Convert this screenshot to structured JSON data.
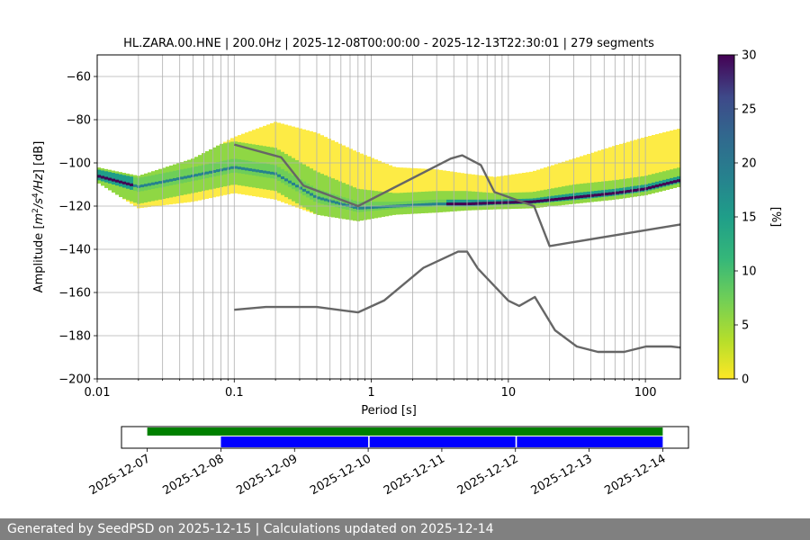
{
  "chart_data": {
    "type": "heatmap",
    "title": "HL.ZARA.00.HNE | 200.0Hz | 2025-12-08T00:00:00 - 2025-12-13T22:30:01 | 279 segments",
    "xlabel": "Period [s]",
    "ylabel_parts": [
      "Amplitude [",
      "m",
      "2",
      "/s",
      "4",
      "/Hz",
      "] [dB]"
    ],
    "x_scale": "log",
    "xlim": [
      0.01,
      180
    ],
    "ylim": [
      -200,
      -50
    ],
    "x_ticks": [
      0.01,
      0.1,
      1,
      10,
      100
    ],
    "x_tick_labels": [
      "0.01",
      "0.1",
      "1",
      "10",
      "100"
    ],
    "y_ticks": [
      -200,
      -180,
      -160,
      -140,
      -120,
      -100,
      -80,
      -60
    ],
    "y_tick_labels": [
      "−200",
      "−180",
      "−160",
      "−140",
      "−120",
      "−100",
      "−80",
      "−60"
    ],
    "grid": true,
    "colorbar": {
      "label": "[%]",
      "range": [
        0,
        30
      ],
      "ticks": [
        0,
        5,
        10,
        15,
        20,
        25,
        30
      ],
      "tick_labels": [
        "0",
        "5",
        "10",
        "15",
        "20",
        "25",
        "30"
      ]
    },
    "nlnm": {
      "name": "",
      "x": [
        0.1,
        0.17,
        0.4,
        0.8,
        1.24,
        2.4,
        4.3,
        5.0,
        6.0,
        10.0,
        12.0,
        15.6,
        21.9,
        31.6,
        45.0,
        70.0,
        101,
        154,
        180
      ],
      "y": [
        -168,
        -166.7,
        -166.7,
        -169.2,
        -163.7,
        -148.6,
        -141.1,
        -141.1,
        -149.0,
        -163.8,
        -166.2,
        -162.1,
        -177.5,
        -185.0,
        -187.5,
        -187.5,
        -185.0,
        -185.0,
        -185.5
      ]
    },
    "nhnm": {
      "name": "",
      "x": [
        0.1,
        0.22,
        0.32,
        0.8,
        3.8,
        4.6,
        6.3,
        7.9,
        15.4,
        20.0,
        180
      ],
      "y": [
        -91.5,
        -97.4,
        -110.5,
        -120.0,
        -98.0,
        -96.5,
        -101.0,
        -113.5,
        -120.0,
        -138.5,
        -128.5
      ]
    },
    "density_bands": [
      {
        "x": [
          0.01,
          0.02,
          0.05,
          0.1,
          0.2,
          0.4,
          0.8,
          1.5,
          3.0,
          5.0,
          8.0,
          15.0,
          30.0,
          60.0,
          100.0,
          180.0
        ],
        "mode": [
          -106,
          -111,
          -106,
          -102,
          -105,
          -116,
          -121,
          -120,
          -119,
          -119,
          -118.5,
          -118,
          -116,
          -114,
          -112,
          -108
        ],
        "inner": [
          3,
          4,
          4,
          4,
          4,
          4,
          3,
          2,
          2,
          2,
          1.5,
          1.5,
          2,
          2,
          2,
          2
        ],
        "outer_up": [
          4,
          5,
          8,
          14,
          24,
          30,
          26,
          18,
          16,
          14,
          12,
          14,
          18,
          22,
          24,
          24
        ],
        "outer_down": [
          3,
          10,
          12,
          12,
          12,
          8,
          6,
          4,
          4,
          3,
          3,
          3,
          3,
          3,
          3,
          3
        ]
      }
    ],
    "coverage_timeline": {
      "x_ticks": [
        "2025-12-07",
        "2025-12-08",
        "2025-12-09",
        "2025-12-10",
        "2025-12-11",
        "2025-12-12",
        "2025-12-13",
        "2025-12-14"
      ],
      "data_span": {
        "start_day": 0.0,
        "end_day": 7.0,
        "color": "#008000"
      },
      "psd_segments": [
        {
          "start_day": 1.0,
          "end_day": 3.0,
          "color": "#0000ff"
        },
        {
          "start_day": 3.02,
          "end_day": 5.0,
          "color": "#0000ff"
        },
        {
          "start_day": 5.02,
          "end_day": 7.0,
          "color": "#0000ff"
        }
      ],
      "xlim_days": [
        -0.35,
        7.35
      ]
    }
  },
  "footer": {
    "text": "Generated by SeedPSD on 2025-12-15 | Calculations updated on 2025-12-14"
  },
  "colors": {
    "model_line": "#666666",
    "grid": "#b0b0b0",
    "footer_bg": "#808080"
  }
}
